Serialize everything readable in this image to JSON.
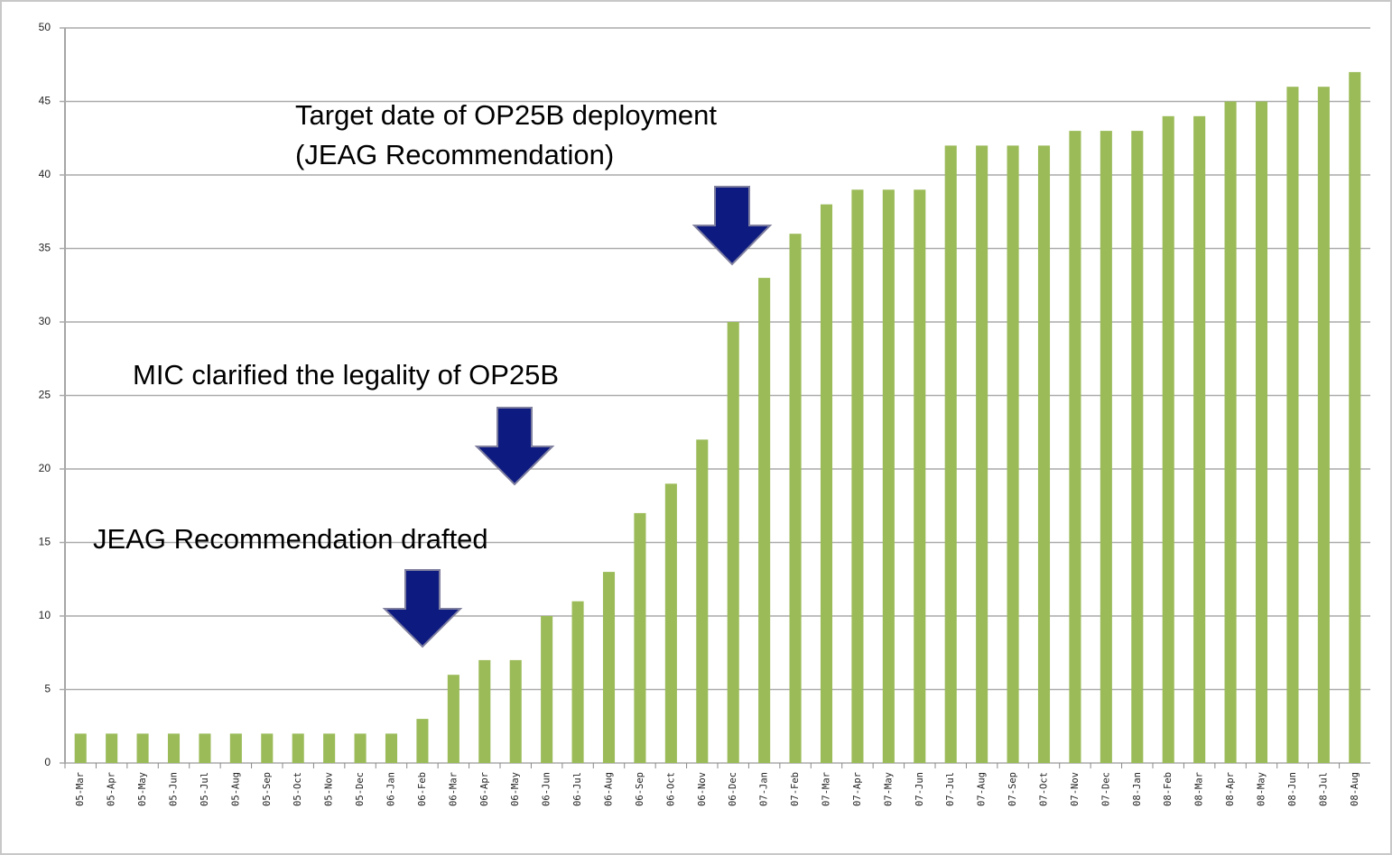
{
  "chart_data": {
    "type": "bar",
    "categories": [
      "05-Mar",
      "05-Apr",
      "05-May",
      "05-Jun",
      "05-Jul",
      "05-Aug",
      "05-Sep",
      "05-Oct",
      "05-Nov",
      "05-Dec",
      "06-Jan",
      "06-Feb",
      "06-Mar",
      "06-Apr",
      "06-May",
      "06-Jun",
      "06-Jul",
      "06-Aug",
      "06-Sep",
      "06-Oct",
      "06-Nov",
      "06-Dec",
      "07-Jan",
      "07-Feb",
      "07-Mar",
      "07-Apr",
      "07-May",
      "07-Jun",
      "07-Jul",
      "07-Aug",
      "07-Sep",
      "07-Oct",
      "07-Nov",
      "07-Dec",
      "08-Jan",
      "08-Feb",
      "08-Mar",
      "08-Apr",
      "08-May",
      "08-Jun",
      "08-Jul",
      "08-Aug"
    ],
    "values": [
      2,
      2,
      2,
      2,
      2,
      2,
      2,
      2,
      2,
      2,
      2,
      3,
      6,
      7,
      7,
      10,
      11,
      13,
      17,
      19,
      22,
      30,
      33,
      36,
      38,
      39,
      39,
      39,
      42,
      42,
      42,
      42,
      43,
      43,
      43,
      44,
      44,
      45,
      45,
      46,
      46,
      47
    ],
    "color": "#9bbb59",
    "ylim": [
      0,
      50
    ],
    "yticks": [
      0,
      5,
      10,
      15,
      20,
      25,
      30,
      35,
      40,
      45,
      50
    ],
    "grid": true,
    "annotations": [
      "Target date of OP25B deployment",
      "(JEAG Recommendation)",
      "MIC clarified the legality of OP25B",
      "JEAG Recommendation drafted"
    ]
  }
}
